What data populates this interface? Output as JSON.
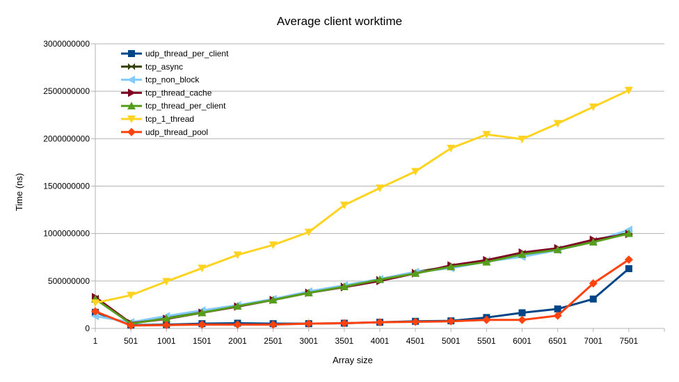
{
  "chart_data": {
    "type": "line",
    "title": "Average client worktime",
    "xlabel": "Array size",
    "ylabel": "Time (ns)",
    "categories": [
      "1",
      "501",
      "1001",
      "1501",
      "2001",
      "2501",
      "3001",
      "3501",
      "4001",
      "4501",
      "5001",
      "5501",
      "6001",
      "6501",
      "7001",
      "7501"
    ],
    "ylim": [
      0,
      3000000000
    ],
    "yticks": [
      "0",
      "500000000",
      "1000000000",
      "1500000000",
      "2000000000",
      "2500000000",
      "3000000000"
    ],
    "grid": true,
    "legend": "top-left",
    "series": [
      {
        "name": "udp_thread_per_client",
        "color": "#004586",
        "marker": "square",
        "values": [
          170000000,
          35000000,
          40000000,
          50000000,
          55000000,
          50000000,
          50000000,
          55000000,
          65000000,
          75000000,
          80000000,
          115000000,
          165000000,
          205000000,
          310000000,
          630000000
        ]
      },
      {
        "name": "tcp_async",
        "color": "#314004",
        "marker": "bowtie",
        "values": [
          320000000,
          55000000,
          110000000,
          175000000,
          240000000,
          305000000,
          385000000,
          450000000,
          520000000,
          595000000,
          655000000,
          720000000,
          795000000,
          840000000,
          930000000,
          1005000000
        ]
      },
      {
        "name": "tcp_non_block",
        "color": "#83caff",
        "marker": "triangle-left",
        "values": [
          130000000,
          65000000,
          130000000,
          190000000,
          245000000,
          310000000,
          390000000,
          455000000,
          520000000,
          595000000,
          635000000,
          705000000,
          755000000,
          825000000,
          915000000,
          1040000000
        ]
      },
      {
        "name": "tcp_thread_cache",
        "color": "#7e0021",
        "marker": "triangle-right",
        "values": [
          330000000,
          55000000,
          100000000,
          165000000,
          230000000,
          300000000,
          375000000,
          435000000,
          500000000,
          580000000,
          665000000,
          720000000,
          800000000,
          845000000,
          935000000,
          995000000
        ]
      },
      {
        "name": "tcp_thread_per_client",
        "color": "#579d1c",
        "marker": "triangle-up",
        "values": [
          310000000,
          50000000,
          105000000,
          165000000,
          235000000,
          300000000,
          375000000,
          440000000,
          515000000,
          580000000,
          650000000,
          700000000,
          780000000,
          830000000,
          910000000,
          1000000000
        ]
      },
      {
        "name": "tcp_1_thread",
        "color": "#ffd320",
        "marker": "triangle-down",
        "values": [
          270000000,
          350000000,
          495000000,
          635000000,
          775000000,
          880000000,
          1015000000,
          1300000000,
          1480000000,
          1655000000,
          1900000000,
          2045000000,
          1995000000,
          2160000000,
          2335000000,
          2510000000
        ]
      },
      {
        "name": "udp_thread_pool",
        "color": "#ff420e",
        "marker": "diamond",
        "values": [
          180000000,
          30000000,
          35000000,
          40000000,
          40000000,
          40000000,
          50000000,
          55000000,
          65000000,
          70000000,
          75000000,
          90000000,
          90000000,
          135000000,
          475000000,
          725000000
        ]
      }
    ]
  }
}
